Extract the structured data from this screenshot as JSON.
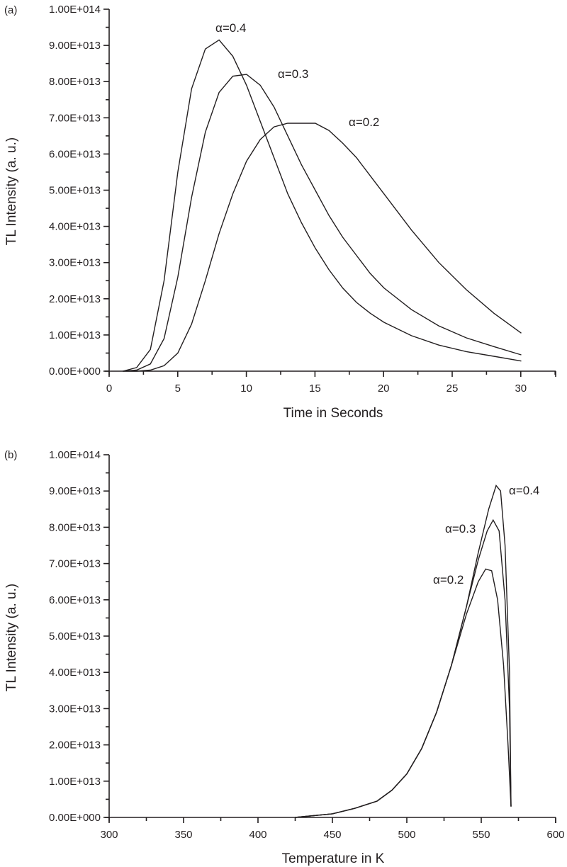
{
  "chart_data": [
    {
      "panel": "(a)",
      "type": "line",
      "title": "",
      "xlabel": "Time in Seconds",
      "ylabel": "TL Intensity (a. u.)",
      "xlim": [
        0,
        32.5
      ],
      "ylim": [
        0,
        100000000000000.0
      ],
      "x_ticks": [
        "0",
        "5",
        "10",
        "15",
        "20",
        "25",
        "30"
      ],
      "y_ticks": [
        "0.00E+000",
        "1.00E+013",
        "2.00E+013",
        "3.00E+013",
        "4.00E+013",
        "5.00E+013",
        "6.00E+013",
        "7.00E+013",
        "8.00E+013",
        "9.00E+013",
        "1.00E+014"
      ],
      "grid": false,
      "legend": "inline labels",
      "x": [
        1,
        2,
        3,
        4,
        5,
        6,
        7,
        8,
        9,
        10,
        11,
        12,
        13,
        14,
        15,
        16,
        17,
        18,
        19,
        20,
        22,
        24,
        26,
        28,
        30
      ],
      "series": [
        {
          "name": "α=0.4",
          "values": [
            0.0,
            1000000000000.0,
            6000000000000.0,
            25000000000000.0,
            55000000000000.0,
            78000000000000.0,
            89000000000000.0,
            91500000000000.0,
            87000000000000.0,
            79000000000000.0,
            69000000000000.0,
            59000000000000.0,
            49000000000000.0,
            41000000000000.0,
            34000000000000.0,
            28000000000000.0,
            23000000000000.0,
            19000000000000.0,
            16000000000000.0,
            13500000000000.0,
            9800000000000.0,
            7200000000000.0,
            5400000000000.0,
            4100000000000.0,
            2800000000000.0
          ]
        },
        {
          "name": "α=0.3",
          "values": [
            0.0,
            300000000000.0,
            2000000000000.0,
            9000000000000.0,
            26000000000000.0,
            48000000000000.0,
            66000000000000.0,
            77000000000000.0,
            81500000000000.0,
            82000000000000.0,
            79000000000000.0,
            73000000000000.0,
            65000000000000.0,
            57000000000000.0,
            50000000000000.0,
            43000000000000.0,
            37000000000000.0,
            32000000000000.0,
            27000000000000.0,
            23000000000000.0,
            17000000000000.0,
            12500000000000.0,
            9200000000000.0,
            6800000000000.0,
            4500000000000.0
          ]
        },
        {
          "name": "α=0.2",
          "values": [
            0.0,
            0.0,
            300000000000.0,
            1500000000000.0,
            5000000000000.0,
            13000000000000.0,
            25000000000000.0,
            38000000000000.0,
            49000000000000.0,
            58000000000000.0,
            64000000000000.0,
            67500000000000.0,
            68500000000000.0,
            68500000000000.0,
            68500000000000.0,
            66500000000000.0,
            63000000000000.0,
            59000000000000.0,
            54000000000000.0,
            49000000000000.0,
            39000000000000.0,
            30000000000000.0,
            22500000000000.0,
            16000000000000.0,
            10500000000000.0
          ]
        }
      ],
      "annotations": [
        "α=0.4",
        "α=0.3",
        "α=0.2"
      ]
    },
    {
      "panel": "(b)",
      "type": "line",
      "title": "",
      "xlabel": "Temperature in K",
      "ylabel": "TL Intensity (a. u.)",
      "xlim": [
        300,
        600
      ],
      "ylim": [
        0,
        100000000000000.0
      ],
      "x_ticks": [
        "300",
        "350",
        "400",
        "450",
        "500",
        "550",
        "600"
      ],
      "y_ticks": [
        "0.00E+000",
        "1.00E+013",
        "2.00E+013",
        "3.00E+013",
        "4.00E+013",
        "5.00E+013",
        "6.00E+013",
        "7.00E+013",
        "8.00E+013",
        "9.00E+013",
        "1.00E+014"
      ],
      "grid": false,
      "legend": "inline labels",
      "series": [
        {
          "name": "α=0.4",
          "x": [
            425,
            450,
            465,
            480,
            490,
            500,
            510,
            520,
            530,
            540,
            548,
            555,
            560,
            563,
            566,
            569,
            570
          ],
          "values": [
            0.0,
            1000000000000.0,
            2500000000000.0,
            4500000000000.0,
            7500000000000.0,
            12000000000000.0,
            19000000000000.0,
            29000000000000.0,
            42000000000000.0,
            58000000000000.0,
            73000000000000.0,
            85000000000000.0,
            91500000000000.0,
            90000000000000.0,
            75000000000000.0,
            40000000000000.0,
            3000000000000.0
          ]
        },
        {
          "name": "α=0.3",
          "x": [
            425,
            450,
            465,
            480,
            490,
            500,
            510,
            520,
            530,
            540,
            548,
            554,
            558,
            562,
            566,
            569,
            570
          ],
          "values": [
            0.0,
            1000000000000.0,
            2500000000000.0,
            4500000000000.0,
            7500000000000.0,
            12000000000000.0,
            19000000000000.0,
            29000000000000.0,
            42000000000000.0,
            58000000000000.0,
            71000000000000.0,
            79000000000000.0,
            82000000000000.0,
            79000000000000.0,
            60000000000000.0,
            30000000000000.0,
            3000000000000.0
          ]
        },
        {
          "name": "α=0.2",
          "x": [
            425,
            450,
            465,
            480,
            490,
            500,
            510,
            520,
            530,
            540,
            548,
            553,
            557,
            561,
            565,
            568,
            570
          ],
          "values": [
            0.0,
            1000000000000.0,
            2500000000000.0,
            4500000000000.0,
            7500000000000.0,
            12000000000000.0,
            19000000000000.0,
            29000000000000.0,
            42000000000000.0,
            56000000000000.0,
            65000000000000.0,
            68500000000000.0,
            68000000000000.0,
            60000000000000.0,
            42000000000000.0,
            20000000000000.0,
            3000000000000.0
          ]
        }
      ],
      "annotations": [
        "α=0.4",
        "α=0.3",
        "α=0.2"
      ]
    }
  ],
  "panels": {
    "a": {
      "label": "(a)",
      "ylabel": "TL Intensity (a. u.)",
      "xlabel": "Time in Seconds",
      "series_labels": [
        "α=0.4",
        "α=0.3",
        "α=0.2"
      ]
    },
    "b": {
      "label": "(b)",
      "ylabel": "TL Intensity (a. u.)",
      "xlabel": "Temperature in K",
      "series_labels": [
        "α=0.4",
        "α=0.3",
        "α=0.2"
      ]
    }
  }
}
